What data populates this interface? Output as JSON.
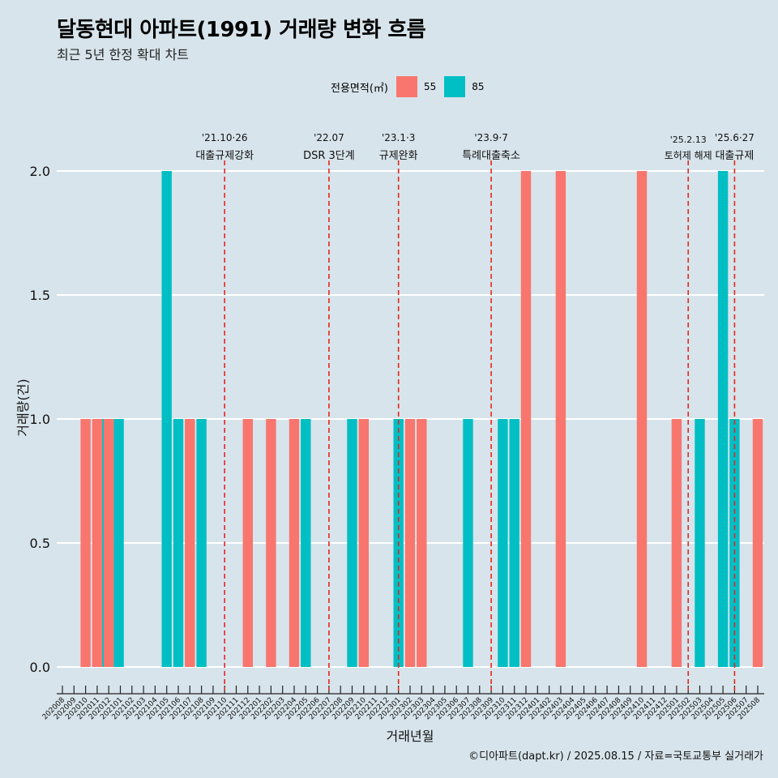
{
  "title": "달동현대 아파트(1991) 거래량 변화 흐름",
  "subtitle": "최근 5년 한정 확대 차트",
  "caption": "©디아파트(dapt.kr) / 2025.08.15 / 자료=국토교통부 실거래가",
  "legend": {
    "title": "전용면적(㎡)",
    "items": [
      {
        "label": "55",
        "color": "#f8766d"
      },
      {
        "label": "85",
        "color": "#00bfc4"
      }
    ]
  },
  "chart_data": {
    "type": "bar",
    "xlabel": "거래년월",
    "ylabel": "거래량(건)",
    "ylim": [
      0,
      2
    ],
    "yticks": [
      "0.0",
      "0.5",
      "1.0",
      "1.5",
      "2.0"
    ],
    "categories": [
      "202008",
      "202009",
      "202010",
      "202011",
      "202012",
      "202101",
      "202102",
      "202103",
      "202104",
      "202105",
      "202106",
      "202107",
      "202108",
      "202109",
      "202110",
      "202111",
      "202112",
      "202201",
      "202202",
      "202203",
      "202204",
      "202205",
      "202206",
      "202207",
      "202208",
      "202209",
      "202210",
      "202211",
      "202212",
      "202301",
      "202302",
      "202303",
      "202304",
      "202305",
      "202306",
      "202307",
      "202308",
      "202309",
      "202310",
      "202311",
      "202312",
      "202401",
      "202402",
      "202403",
      "202404",
      "202405",
      "202406",
      "202407",
      "202408",
      "202409",
      "202410",
      "202411",
      "202412",
      "202501",
      "202502",
      "202503",
      "202504",
      "202505",
      "202506",
      "202507",
      "202508"
    ],
    "series": [
      {
        "name": "55",
        "color": "#f8766d",
        "values": [
          0,
          0,
          1,
          1,
          1,
          0,
          0,
          0,
          0,
          0,
          0,
          1,
          0,
          0,
          0,
          0,
          1,
          0,
          1,
          0,
          1,
          0,
          0,
          0,
          0,
          0,
          1,
          0,
          0,
          0,
          1,
          1,
          0,
          0,
          0,
          0,
          0,
          0,
          0,
          0,
          2,
          0,
          0,
          2,
          0,
          0,
          0,
          0,
          0,
          0,
          2,
          0,
          0,
          1,
          0,
          0,
          0,
          0,
          0,
          0,
          1
        ]
      },
      {
        "name": "85",
        "color": "#00bfc4",
        "values": [
          0,
          0,
          0,
          1,
          1,
          0,
          0,
          0,
          0,
          2,
          1,
          0,
          1,
          0,
          0,
          0,
          0,
          0,
          0,
          0,
          0,
          1,
          0,
          0,
          0,
          1,
          0,
          0,
          0,
          1,
          0,
          0,
          0,
          0,
          0,
          1,
          0,
          0,
          1,
          1,
          0,
          0,
          0,
          0,
          0,
          0,
          0,
          0,
          0,
          0,
          0,
          0,
          0,
          0,
          0,
          1,
          0,
          2,
          1,
          0,
          0
        ]
      }
    ],
    "annotations": [
      {
        "x": "202110",
        "date": "'21.10·26",
        "label": "대출규제강화"
      },
      {
        "x": "202207",
        "date": "'22.07",
        "label": "DSR 3단계"
      },
      {
        "x": "202301",
        "date": "'23.1·3",
        "label": "규제완화"
      },
      {
        "x": "202309",
        "date": "'23.9·7",
        "label": "특례대출축소"
      },
      {
        "x": "202502",
        "date": "'25.2.13",
        "label": "토허제 해제"
      },
      {
        "x": "202506",
        "date": "'25.6·27",
        "label": "대출규제"
      }
    ],
    "grid": true,
    "legend_position": "top"
  }
}
